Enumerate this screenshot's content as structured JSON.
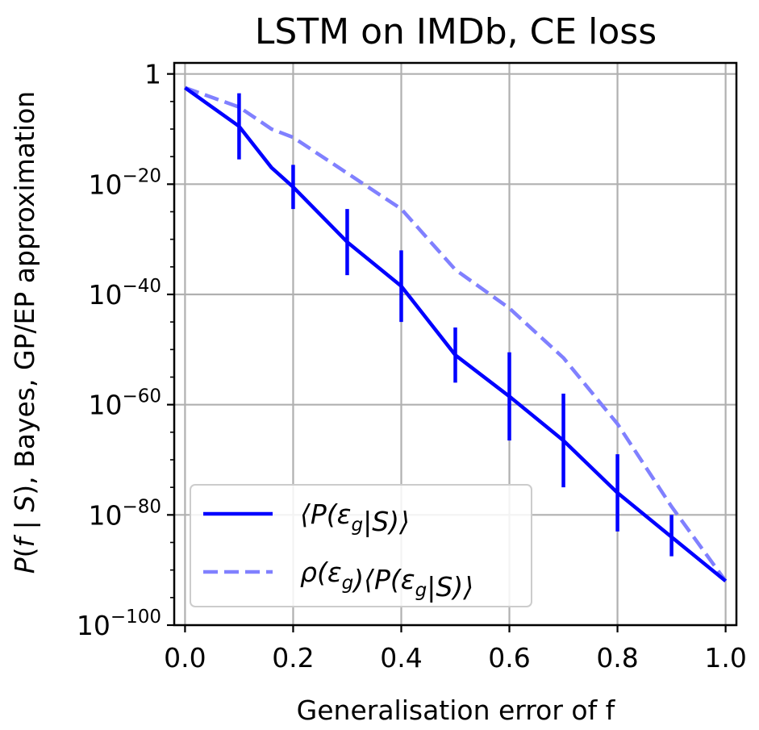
{
  "chart_data": {
    "type": "line",
    "title": "LSTM on IMDb, CE loss",
    "xlabel": "Generalisation error of f",
    "ylabel": "P(f | S), Bayes, GP/EP approximation",
    "y_scale": "log",
    "xlim": [
      -0.02,
      1.02
    ],
    "ylim_log10": [
      -100,
      2
    ],
    "grid": true,
    "legend_position": "lower-left",
    "x_ticks": [
      0.0,
      0.2,
      0.4,
      0.6,
      0.8,
      1.0
    ],
    "x_tick_labels": [
      "0.0",
      "0.2",
      "0.4",
      "0.6",
      "0.8",
      "1.0"
    ],
    "y_ticks_log10": [
      0,
      -20,
      -40,
      -60,
      -80,
      -100
    ],
    "y_tick_labels": [
      {
        "base": "1",
        "exp": ""
      },
      {
        "base": "10",
        "exp": "−20"
      },
      {
        "base": "10",
        "exp": "−40"
      },
      {
        "base": "10",
        "exp": "−60"
      },
      {
        "base": "10",
        "exp": "−80"
      },
      {
        "base": "10",
        "exp": "−100"
      }
    ],
    "y_minor_ticks_log10": [
      -5,
      -10,
      -15,
      -25,
      -30,
      -35,
      -45,
      -50,
      -55,
      -65,
      -70,
      -75,
      -85,
      -90,
      -95
    ],
    "series": [
      {
        "name": "⟨P(ε_g|S)⟩",
        "legend_label": {
          "a": "⟨P(ε",
          "sub1": "g",
          "b": "|S)⟩"
        },
        "color": "#0000ff",
        "dash": "solid",
        "x": [
          0.0,
          0.1,
          0.16,
          0.2,
          0.3,
          0.4,
          0.5,
          0.6,
          0.7,
          0.8,
          0.9,
          1.0
        ],
        "y_log10": [
          -2.5,
          -9.5,
          -17.0,
          -20.5,
          -30.5,
          -38.5,
          -51.0,
          -58.5,
          -66.5,
          -76.0,
          -84.0,
          -92.0
        ],
        "errorbars": [
          {
            "x": 0.1,
            "low": -15.5,
            "high": -3.5
          },
          {
            "x": 0.2,
            "low": -24.5,
            "high": -16.5
          },
          {
            "x": 0.3,
            "low": -36.5,
            "high": -24.5
          },
          {
            "x": 0.4,
            "low": -45.0,
            "high": -32.0
          },
          {
            "x": 0.5,
            "low": -56.0,
            "high": -46.0
          },
          {
            "x": 0.6,
            "low": -66.5,
            "high": -50.5
          },
          {
            "x": 0.7,
            "low": -75.0,
            "high": -58.0
          },
          {
            "x": 0.8,
            "low": -83.0,
            "high": -69.0
          },
          {
            "x": 0.9,
            "low": -87.5,
            "high": -80.0
          }
        ]
      },
      {
        "name": "ρ(ε_g)⟨P(ε_g|S)⟩",
        "legend_label": {
          "a": "ρ(ε",
          "sub1": "g",
          "b": ")⟨P(ε",
          "sub2": "g",
          "c": "|S)⟩"
        },
        "color": "#8080ff",
        "dash": "dashed",
        "x": [
          0.0,
          0.1,
          0.16,
          0.2,
          0.3,
          0.4,
          0.5,
          0.6,
          0.7,
          0.8,
          0.9,
          1.0
        ],
        "y_log10": [
          -2.5,
          -6.0,
          -10.0,
          -11.5,
          -18.0,
          -24.5,
          -35.5,
          -42.5,
          -51.5,
          -63.5,
          -78.5,
          -92.0
        ]
      }
    ]
  }
}
